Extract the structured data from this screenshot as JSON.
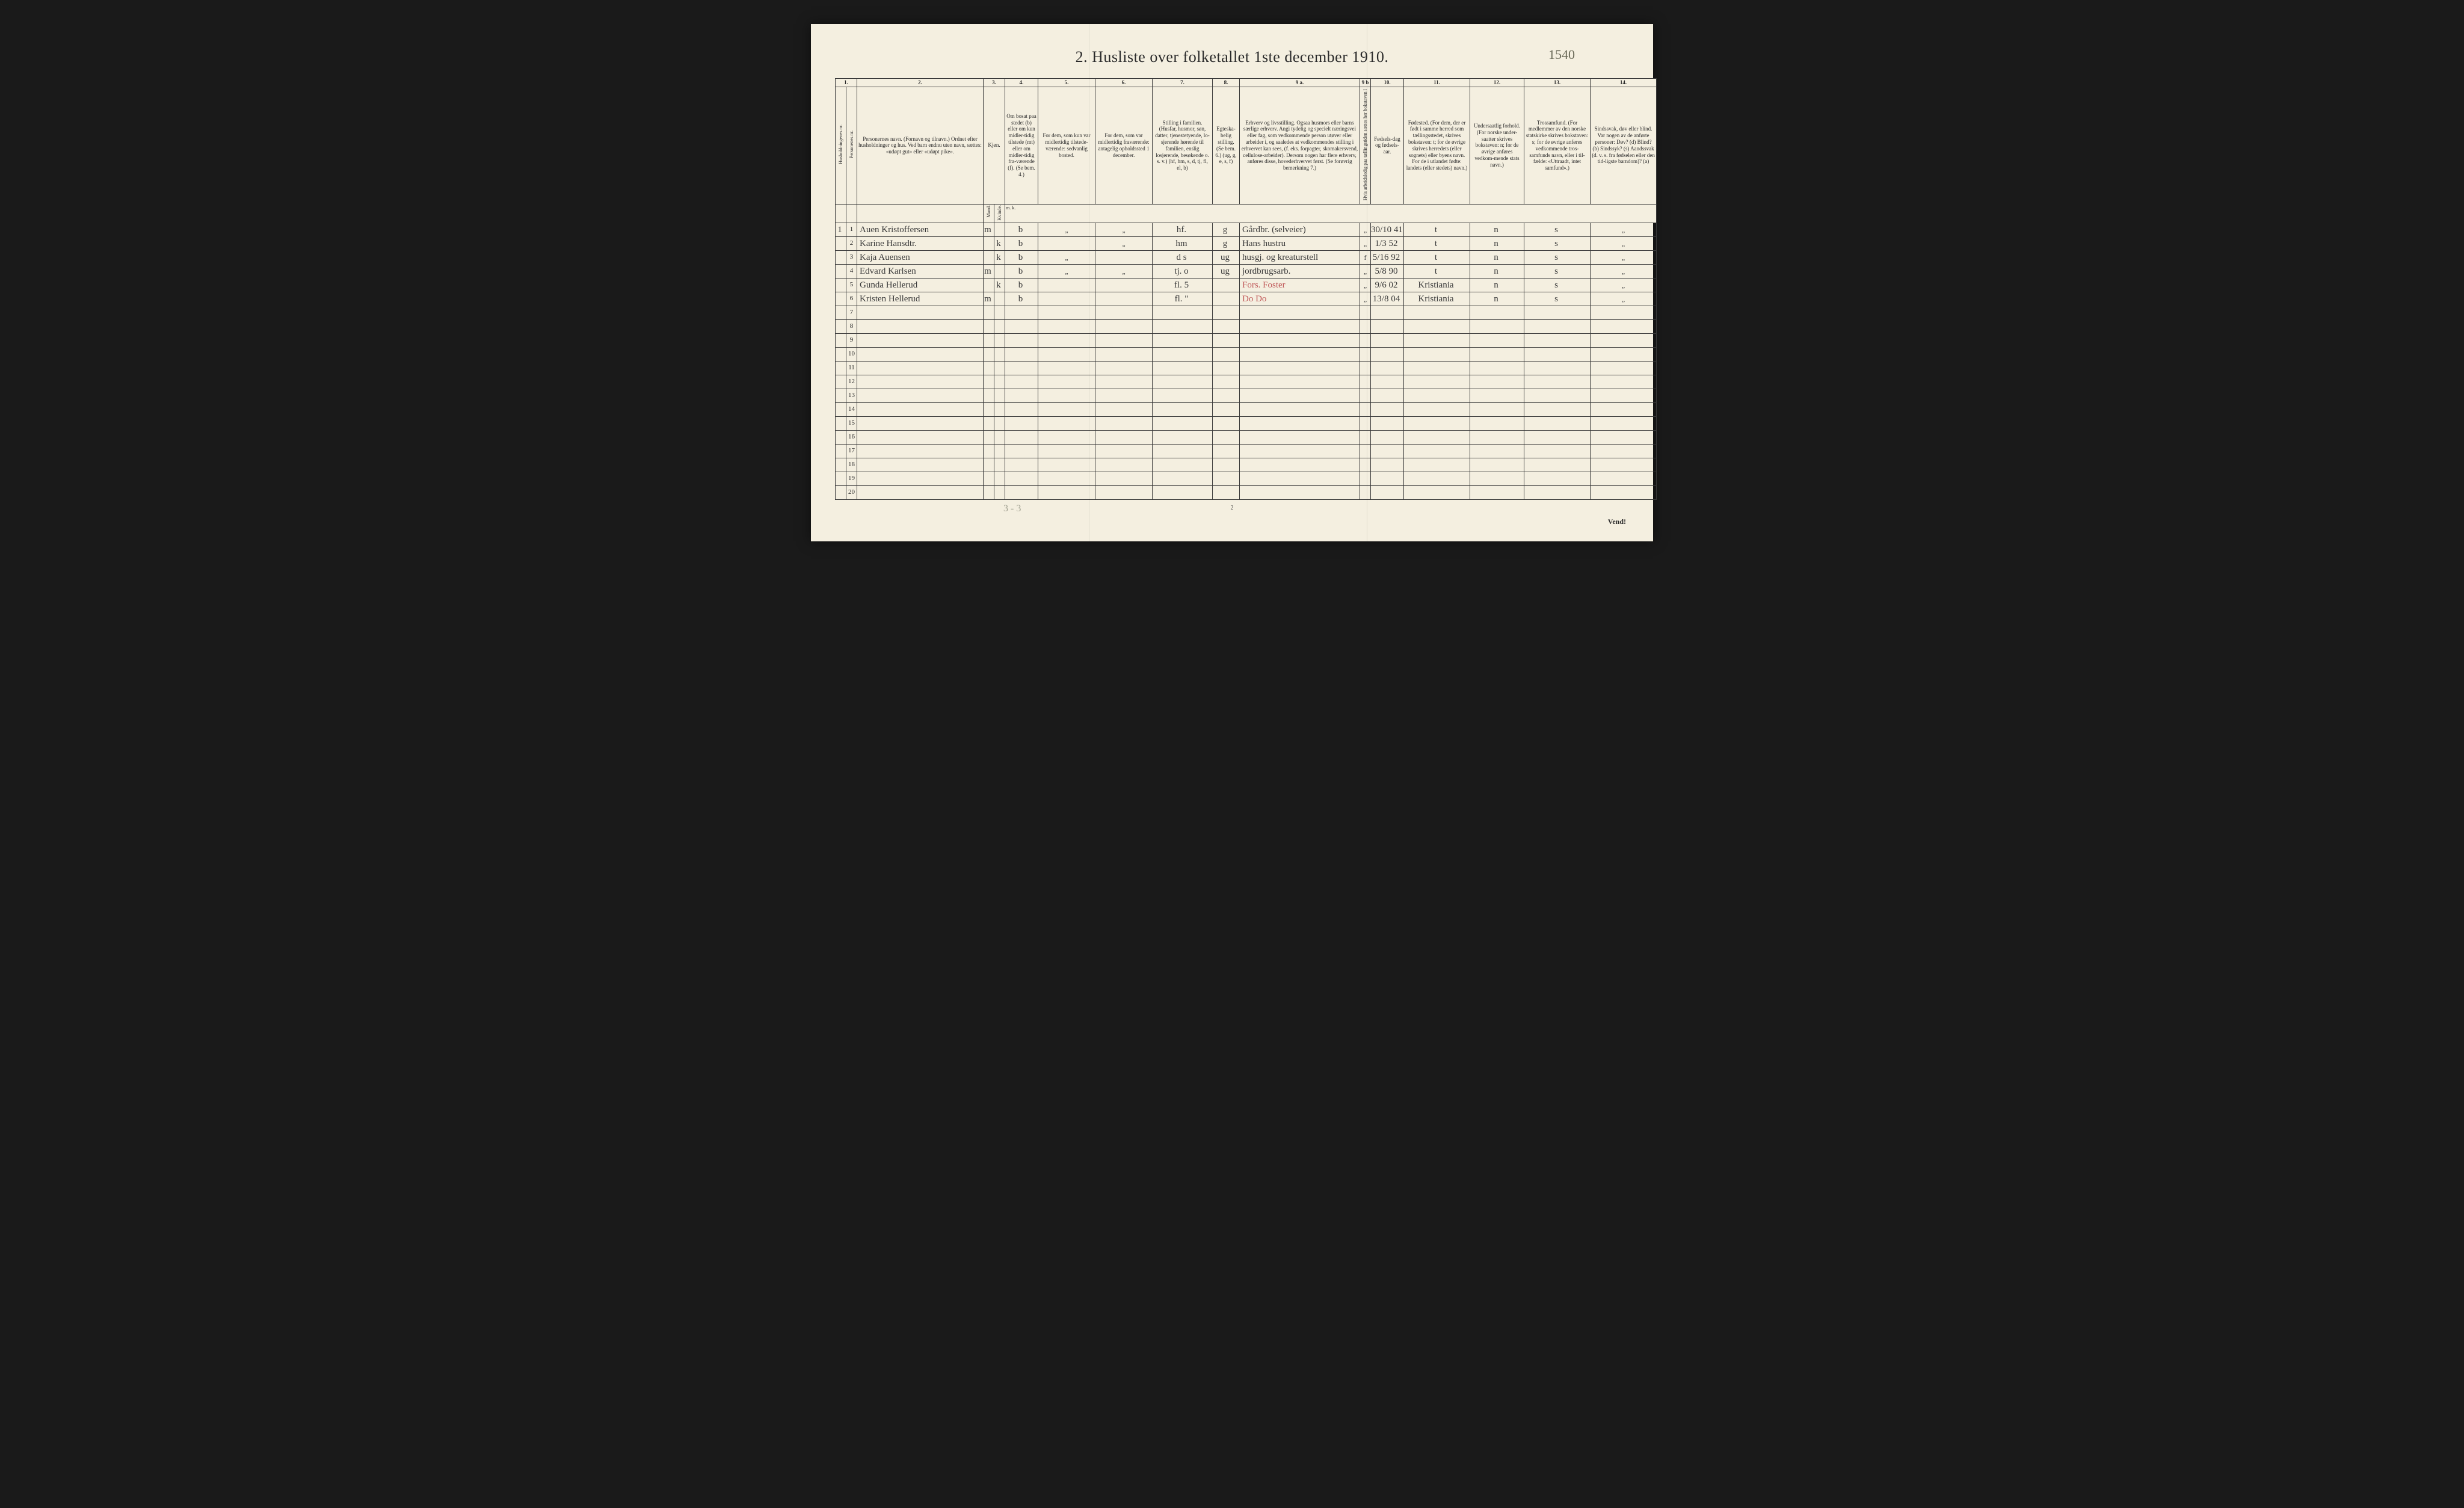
{
  "title": "2.  Husliste over folketallet 1ste december 1910.",
  "topAnnotation": "1540",
  "pageNumber": "2",
  "vend": "Vend!",
  "bottomNote": "3 - 3",
  "columns": {
    "nums": [
      "1.",
      "2.",
      "3.",
      "4.",
      "5.",
      "6.",
      "7.",
      "8.",
      "9 a.",
      "9 b",
      "10.",
      "11.",
      "12.",
      "13.",
      "14."
    ],
    "h1": "Husholdningenes nr.",
    "h1b": "Personenes nr.",
    "h2": "Personernes navn.\n(Fornavn og tilnavn.)\nOrdnet efter husholdninger og hus.\nVed barn endnu uten navn, sættes: «udøpt gut» eller «udøpt pike».",
    "h3": "Kjøn.",
    "h3a": "Mand.",
    "h3b": "Kvinde.",
    "h4": "Om bosat paa stedet (b) eller om kun midler-tidig tilstede (mt) eller om midler-tidig fra-værende (f). (Se bem. 4.)",
    "h5": "For dem, som kun var midlertidig tilstede-værende:\n\nsedvanlig bosted.",
    "h6": "For dem, som var midlertidig fraværende:\n\nantagelig opholdssted 1 december.",
    "h7": "Stilling i familien.\n(Husfar, husmor, søn, datter, tjenestetyende, lo-sjerende hørende til familien, enslig losjerende, besøkende o. s. v.)\n(hf, hm, s, d, tj, fl, el, b)",
    "h8": "Egteska-belig stilling.\n(Se bem. 6.)\n(ug, g, e, s, f)",
    "h9a": "Erhverv og livsstilling.\nOgsaa husmors eller barns særlige erhverv.\nAngi tydelig og specielt næringsvei eller fag, som vedkommende person utøver eller arbeider i, og saaledes at vedkommendes stilling i erhvervet kan sees, (f. eks. forpagter, skomakersvend, cellulose-arbeider). Dersom nogen har flere erhverv, anføres disse, hovederhvervet først.\n(Se forøvrig bemerkning 7.)",
    "h9b": "Hvis arbeidsledig paa tællingstiden sættes her bokstaven l",
    "h10": "Fødsels-dag og fødsels-aar.",
    "h11": "Fødested.\n(For dem, der er født i samme herred som tællingsstedet, skrives bokstaven: t; for de øvrige skrives herredets (eller sognets) eller byens navn. For de i utlandet fødte: landets (eller stedets) navn.)",
    "h12": "Undersaatlig forhold.\n(For norske under-saatter skrives bokstaven: n; for de øvrige anføres vedkom-mende stats navn.)",
    "h13": "Trossamfund.\n(For medlemmer av den norske statskirke skrives bokstaven: s; for de øvrige anføres vedkommende tros-samfunds navn, eller i til-fælde: «Uttraadt, intet samfund».)",
    "h14": "Sindssvak, døv eller blind.\nVar nogen av de anførte personer:\nDøv?       (d)\nBlind?     (b)\nSindssyk? (s)\nAandssvak (d. v. s. fra fødselen eller den tid-ligste barndom)?  (a)",
    "mk": "m.  k."
  },
  "widths": {
    "c1a": 18,
    "c1b": 18,
    "c2": 210,
    "c3a": 18,
    "c3b": 18,
    "c4": 55,
    "c5": 95,
    "c6": 95,
    "c7": 100,
    "c8": 45,
    "c9a": 200,
    "c9b": 18,
    "c10": 55,
    "c11": 110,
    "c12": 90,
    "c13": 110,
    "c14": 110
  },
  "rows": [
    {
      "hnr": "1",
      "pnr": "1",
      "name": "Auen Kristoffersen",
      "m": "m",
      "k": "",
      "c4": "b",
      "c5": "\"",
      "c6": "\"",
      "c7": "hf.",
      "c8": "g",
      "c9a": "Gårdbr. (selveier)",
      "c9b": "\"",
      "c10": "30/10 41",
      "c11": "t",
      "c12": "n",
      "c13": "s",
      "c14": "\""
    },
    {
      "hnr": "",
      "pnr": "2",
      "name": "Karine Hansdtr.",
      "m": "",
      "k": "k",
      "c4": "b",
      "c5": "",
      "c6": "\"",
      "c7": "hm",
      "c8": "g",
      "c9a": "Hans hustru",
      "c9b": "\"",
      "c10": "1/3 52",
      "c11": "t",
      "c12": "n",
      "c13": "s",
      "c14": "\""
    },
    {
      "hnr": "",
      "pnr": "3",
      "name": "Kaja Auensen",
      "m": "",
      "k": "k",
      "c4": "b",
      "c5": "\"",
      "c6": "",
      "c7": "d    s",
      "c8": "ug",
      "c9a": "husgj. og kreaturstell",
      "c9b": "f",
      "c10": "5/16 92",
      "c11": "t",
      "c12": "n",
      "c13": "s",
      "c14": "\""
    },
    {
      "hnr": "",
      "pnr": "4",
      "name": "Edvard Karlsen",
      "m": "m",
      "k": "",
      "c4": "b",
      "c5": "\"",
      "c6": "\"",
      "c7": "tj.   o",
      "c8": "ug",
      "c9a": "jordbrugsarb.",
      "c9b": "\"",
      "c10": "5/8 90",
      "c11": "t",
      "c12": "n",
      "c13": "s",
      "c14": "\""
    },
    {
      "hnr": "",
      "pnr": "5",
      "name": "Gunda Hellerud",
      "m": "",
      "k": "k",
      "c4": "b",
      "c5": "",
      "c6": "",
      "c7": "fl.   5",
      "c8": "",
      "c9a": "Fors. Foster",
      "c9aRed": true,
      "c9b": "\"",
      "c10": "9/6 02",
      "c11": "Kristiania",
      "c12": "n",
      "c13": "s",
      "c14": "\""
    },
    {
      "hnr": "",
      "pnr": "6",
      "name": "Kristen Hellerud",
      "m": "m",
      "k": "",
      "c4": "b",
      "c5": "",
      "c6": "",
      "c7": "fl.   \"",
      "c8": "",
      "c9a": "Do  Do",
      "c9aRed": true,
      "c9b": "\"",
      "c10": "13/8 04",
      "c11": "Kristiania",
      "c12": "n",
      "c13": "s",
      "c14": "\""
    }
  ],
  "emptyRows": [
    "7",
    "8",
    "9",
    "10",
    "11",
    "12",
    "13",
    "14",
    "15",
    "16",
    "17",
    "18",
    "19",
    "20"
  ]
}
